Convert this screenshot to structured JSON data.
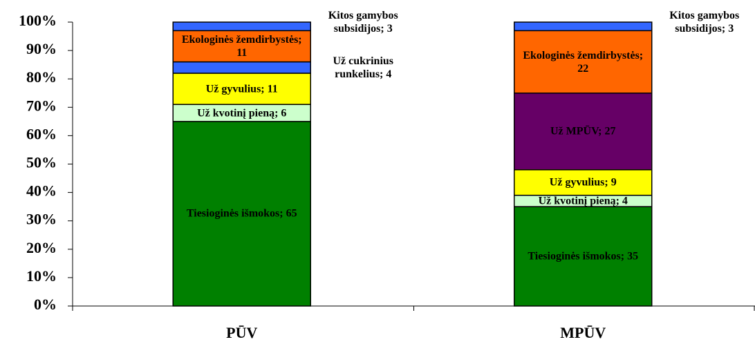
{
  "chart_data": {
    "type": "stacked_bar",
    "categories": [
      "PŪV",
      "MPŪV"
    ],
    "ylim": [
      0,
      100
    ],
    "yticks": [
      {
        "value": 0,
        "label": "0%"
      },
      {
        "value": 10,
        "label": "10%"
      },
      {
        "value": 20,
        "label": "20%"
      },
      {
        "value": 30,
        "label": "30%"
      },
      {
        "value": 40,
        "label": "40%"
      },
      {
        "value": 50,
        "label": "50%"
      },
      {
        "value": 60,
        "label": "60%"
      },
      {
        "value": 70,
        "label": "70%"
      },
      {
        "value": 80,
        "label": "80%"
      },
      {
        "value": 90,
        "label": "90%"
      },
      {
        "value": 100,
        "label": "100%"
      }
    ],
    "series": [
      {
        "color": "#008000",
        "values": [
          65,
          35
        ],
        "value_labels": [
          "Tiesioginės išmokos; 65",
          "Tiesioginės išmokos; 35"
        ]
      },
      {
        "color": "#ccffcc",
        "values": [
          6,
          4
        ],
        "value_labels": [
          "Už kvotinį pieną; 6",
          "Už kvotinį pieną; 4"
        ]
      },
      {
        "color": "#ffff00",
        "values": [
          11,
          9
        ],
        "value_labels": [
          "Už gyvulius; 11",
          "Už gyvulius; 9"
        ]
      },
      {
        "color": "#660066",
        "values": [
          null,
          27
        ],
        "value_labels": [
          null,
          "Už MPŪV; 27"
        ]
      },
      {
        "color": "#3366ff",
        "values": [
          4,
          null
        ],
        "value_labels": [
          "Už cukrinius runkelius; 4",
          null
        ]
      },
      {
        "color": "#ff6600",
        "values": [
          11,
          22
        ],
        "value_labels": [
          "Ekologinės žemdirbystės; 11",
          "Ekologinės žemdirbystės; 22"
        ]
      },
      {
        "color": "#3366ff",
        "values": [
          3,
          3
        ],
        "value_labels": [
          "Kitos gamybos subsidijos; 3",
          "Kitos gamybos subsidijos; 3"
        ]
      }
    ]
  }
}
